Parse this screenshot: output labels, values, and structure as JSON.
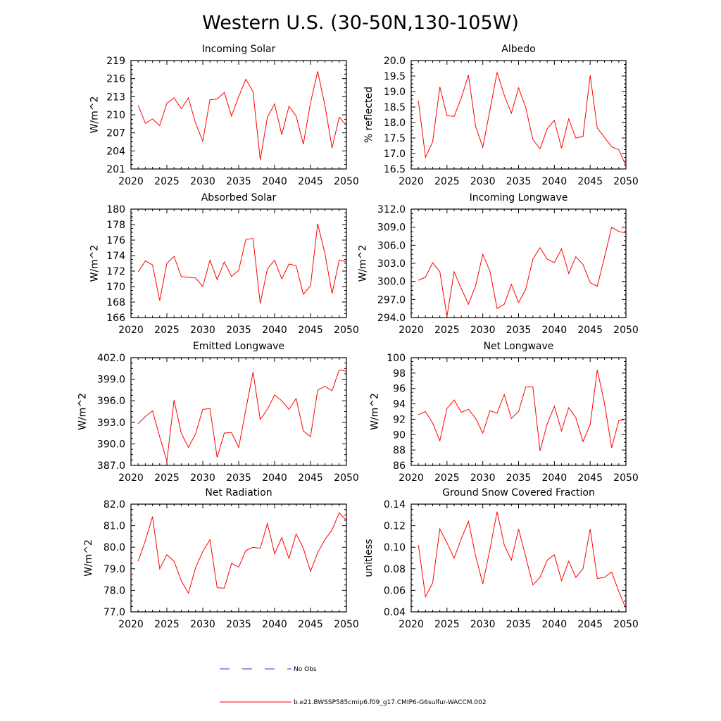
{
  "figure": {
    "title": "Western U.S. (30-50N,130-105W)"
  },
  "colors": {
    "series": "#ff0000",
    "obs": "#3333cc",
    "axis": "#000000"
  },
  "legend": {
    "obs_label": "No Obs",
    "model_label": "b.e21.BWSSP585cmip6.f09_g17.CMIP6-G6sulfur-WACCM.002"
  },
  "chart_data": [
    {
      "type": "line",
      "title": "Incoming Solar",
      "ylabel": "W/m^2",
      "xlim": [
        2020,
        2050
      ],
      "ylim": [
        201,
        219
      ],
      "xticks": [
        2020,
        2025,
        2030,
        2035,
        2040,
        2045,
        2050
      ],
      "yticks": [
        "201",
        "204",
        "207",
        "210",
        "213",
        "216",
        "219"
      ],
      "x": [
        2021,
        2022,
        2023,
        2024,
        2025,
        2026,
        2027,
        2028,
        2029,
        2030,
        2031,
        2032,
        2033,
        2034,
        2035,
        2036,
        2037,
        2038,
        2039,
        2040,
        2041,
        2042,
        2043,
        2044,
        2045,
        2046,
        2047,
        2048,
        2049,
        2050
      ],
      "series": [
        {
          "values": [
            211.6,
            208.6,
            209.3,
            208.2,
            211.9,
            212.8,
            211.0,
            212.8,
            208.6,
            205.6,
            212.5,
            212.6,
            213.7,
            209.8,
            213.0,
            215.9,
            213.8,
            202.5,
            209.6,
            211.8,
            206.7,
            211.4,
            209.8,
            205.1,
            212.0,
            217.2,
            211.6,
            204.5,
            209.6,
            208.2
          ]
        }
      ]
    },
    {
      "type": "line",
      "title": "Albedo",
      "ylabel": "% reflected",
      "xlim": [
        2020,
        2050
      ],
      "ylim": [
        16.5,
        20.0
      ],
      "xticks": [
        2020,
        2025,
        2030,
        2035,
        2040,
        2045,
        2050
      ],
      "yticks": [
        "16.5",
        "17.0",
        "17.5",
        "18.0",
        "18.5",
        "19.0",
        "19.5",
        "20.0"
      ],
      "x": [
        2021,
        2022,
        2023,
        2024,
        2025,
        2026,
        2027,
        2028,
        2029,
        2030,
        2031,
        2032,
        2033,
        2034,
        2035,
        2036,
        2037,
        2038,
        2039,
        2040,
        2041,
        2042,
        2043,
        2044,
        2045,
        2046,
        2047,
        2048,
        2049,
        2050
      ],
      "series": [
        {
          "values": [
            18.7,
            16.88,
            17.38,
            19.15,
            18.22,
            18.2,
            18.8,
            19.53,
            17.87,
            17.2,
            18.4,
            19.62,
            18.88,
            18.3,
            19.12,
            18.48,
            17.45,
            17.15,
            17.8,
            18.07,
            17.17,
            18.12,
            17.5,
            17.55,
            19.52,
            17.82,
            17.52,
            17.22,
            17.12,
            16.6
          ]
        }
      ]
    },
    {
      "type": "line",
      "title": "Absorbed Solar",
      "ylabel": "W/m^2",
      "xlim": [
        2020,
        2050
      ],
      "ylim": [
        166,
        180
      ],
      "xticks": [
        2020,
        2025,
        2030,
        2035,
        2040,
        2045,
        2050
      ],
      "yticks": [
        "166",
        "168",
        "170",
        "172",
        "174",
        "176",
        "178",
        "180"
      ],
      "x": [
        2021,
        2022,
        2023,
        2024,
        2025,
        2026,
        2027,
        2028,
        2029,
        2030,
        2031,
        2032,
        2033,
        2034,
        2035,
        2036,
        2037,
        2038,
        2039,
        2040,
        2041,
        2042,
        2043,
        2044,
        2045,
        2046,
        2047,
        2048,
        2049,
        2050
      ],
      "series": [
        {
          "values": [
            171.9,
            173.3,
            172.8,
            168.2,
            173.0,
            173.9,
            171.3,
            171.2,
            171.1,
            170.0,
            173.4,
            170.9,
            173.2,
            171.3,
            172.1,
            176.1,
            176.2,
            167.8,
            172.3,
            173.4,
            171.0,
            172.9,
            172.7,
            169.0,
            170.1,
            178.1,
            174.3,
            169.1,
            173.4,
            173.2
          ]
        }
      ]
    },
    {
      "type": "line",
      "title": "Incoming Longwave",
      "ylabel": "W/m^2",
      "xlim": [
        2020,
        2050
      ],
      "ylim": [
        294.0,
        312.0
      ],
      "xticks": [
        2020,
        2025,
        2030,
        2035,
        2040,
        2045,
        2050
      ],
      "yticks": [
        "294.0",
        "297.0",
        "300.0",
        "303.0",
        "306.0",
        "309.0",
        "312.0"
      ],
      "x": [
        2021,
        2022,
        2023,
        2024,
        2025,
        2026,
        2027,
        2028,
        2029,
        2030,
        2031,
        2032,
        2033,
        2034,
        2035,
        2036,
        2037,
        2038,
        2039,
        2040,
        2041,
        2042,
        2043,
        2044,
        2045,
        2046,
        2047,
        2048,
        2049,
        2050
      ],
      "series": [
        {
          "values": [
            300.2,
            300.7,
            303.1,
            301.6,
            294.2,
            301.6,
            298.8,
            296.2,
            299.3,
            304.5,
            301.7,
            295.5,
            296.2,
            299.5,
            296.5,
            298.7,
            303.7,
            305.6,
            303.7,
            303.1,
            305.4,
            301.3,
            304.1,
            302.8,
            299.8,
            299.2,
            304.0,
            309.0,
            308.3,
            308.0
          ]
        }
      ]
    },
    {
      "type": "line",
      "title": "Emitted Longwave",
      "ylabel": "W/m^2",
      "xlim": [
        2020,
        2050
      ],
      "ylim": [
        387.0,
        402.0
      ],
      "xticks": [
        2020,
        2025,
        2030,
        2035,
        2040,
        2045,
        2050
      ],
      "yticks": [
        "387.0",
        "390.0",
        "393.0",
        "396.0",
        "399.0",
        "402.0"
      ],
      "x": [
        2021,
        2022,
        2023,
        2024,
        2025,
        2026,
        2027,
        2028,
        2029,
        2030,
        2031,
        2032,
        2033,
        2034,
        2035,
        2036,
        2037,
        2038,
        2039,
        2040,
        2041,
        2042,
        2043,
        2044,
        2045,
        2046,
        2047,
        2048,
        2049,
        2050
      ],
      "series": [
        {
          "values": [
            392.8,
            393.8,
            394.6,
            391.0,
            387.6,
            396.1,
            391.5,
            389.5,
            391.4,
            394.8,
            394.9,
            388.1,
            391.5,
            391.6,
            389.5,
            394.8,
            400.0,
            393.4,
            394.8,
            396.8,
            396.0,
            394.8,
            396.3,
            391.8,
            391.0,
            397.5,
            398.0,
            397.4,
            400.3,
            400.1
          ]
        }
      ]
    },
    {
      "type": "line",
      "title": "Net Longwave",
      "ylabel": "W/m^2",
      "xlim": [
        2020,
        2050
      ],
      "ylim": [
        86,
        100
      ],
      "xticks": [
        2020,
        2025,
        2030,
        2035,
        2040,
        2045,
        2050
      ],
      "yticks": [
        "86",
        "88",
        "90",
        "92",
        "94",
        "96",
        "98",
        "100"
      ],
      "x": [
        2021,
        2022,
        2023,
        2024,
        2025,
        2026,
        2027,
        2028,
        2029,
        2030,
        2031,
        2032,
        2033,
        2034,
        2035,
        2036,
        2037,
        2038,
        2039,
        2040,
        2041,
        2042,
        2043,
        2044,
        2045,
        2046,
        2047,
        2048,
        2049,
        2050
      ],
      "series": [
        {
          "values": [
            92.6,
            93.0,
            91.5,
            89.2,
            93.4,
            94.5,
            92.9,
            93.3,
            92.1,
            90.2,
            93.1,
            92.8,
            95.2,
            92.1,
            93.0,
            96.2,
            96.2,
            87.9,
            91.4,
            93.7,
            90.5,
            93.5,
            92.2,
            89.1,
            91.3,
            98.4,
            94.1,
            88.3,
            91.8,
            92.0
          ]
        }
      ]
    },
    {
      "type": "line",
      "title": "Net Radiation",
      "ylabel": "W/m^2",
      "xlim": [
        2020,
        2050
      ],
      "ylim": [
        77.0,
        82.0
      ],
      "xticks": [
        2020,
        2025,
        2030,
        2035,
        2040,
        2045,
        2050
      ],
      "yticks": [
        "77.0",
        "78.0",
        "79.0",
        "80.0",
        "81.0",
        "82.0"
      ],
      "x": [
        2021,
        2022,
        2023,
        2024,
        2025,
        2026,
        2027,
        2028,
        2029,
        2030,
        2031,
        2032,
        2033,
        2034,
        2035,
        2036,
        2037,
        2038,
        2039,
        2040,
        2041,
        2042,
        2043,
        2044,
        2045,
        2046,
        2047,
        2048,
        2049,
        2050
      ],
      "series": [
        {
          "values": [
            79.35,
            80.3,
            81.42,
            79.0,
            79.65,
            79.35,
            78.45,
            77.87,
            79.05,
            79.8,
            80.35,
            78.12,
            78.1,
            79.25,
            79.08,
            79.85,
            80.0,
            79.95,
            81.1,
            79.7,
            80.45,
            79.48,
            80.62,
            79.95,
            78.88,
            79.75,
            80.35,
            80.8,
            81.6,
            81.25
          ]
        }
      ]
    },
    {
      "type": "line",
      "title": "Ground Snow Covered Fraction",
      "ylabel": "unitless",
      "xlim": [
        2020,
        2050
      ],
      "ylim": [
        0.04,
        0.14
      ],
      "xticks": [
        2020,
        2025,
        2030,
        2035,
        2040,
        2045,
        2050
      ],
      "yticks": [
        "0.04",
        "0.06",
        "0.08",
        "0.10",
        "0.12",
        "0.14"
      ],
      "x": [
        2021,
        2022,
        2023,
        2024,
        2025,
        2026,
        2027,
        2028,
        2029,
        2030,
        2031,
        2032,
        2033,
        2034,
        2035,
        2036,
        2037,
        2038,
        2039,
        2040,
        2041,
        2042,
        2043,
        2044,
        2045,
        2046,
        2047,
        2048,
        2049,
        2050
      ],
      "series": [
        {
          "values": [
            0.102,
            0.054,
            0.067,
            0.117,
            0.104,
            0.09,
            0.108,
            0.124,
            0.092,
            0.066,
            0.098,
            0.133,
            0.102,
            0.088,
            0.117,
            0.091,
            0.065,
            0.072,
            0.088,
            0.093,
            0.069,
            0.087,
            0.072,
            0.08,
            0.117,
            0.071,
            0.072,
            0.077,
            0.059,
            0.043
          ]
        }
      ]
    }
  ]
}
